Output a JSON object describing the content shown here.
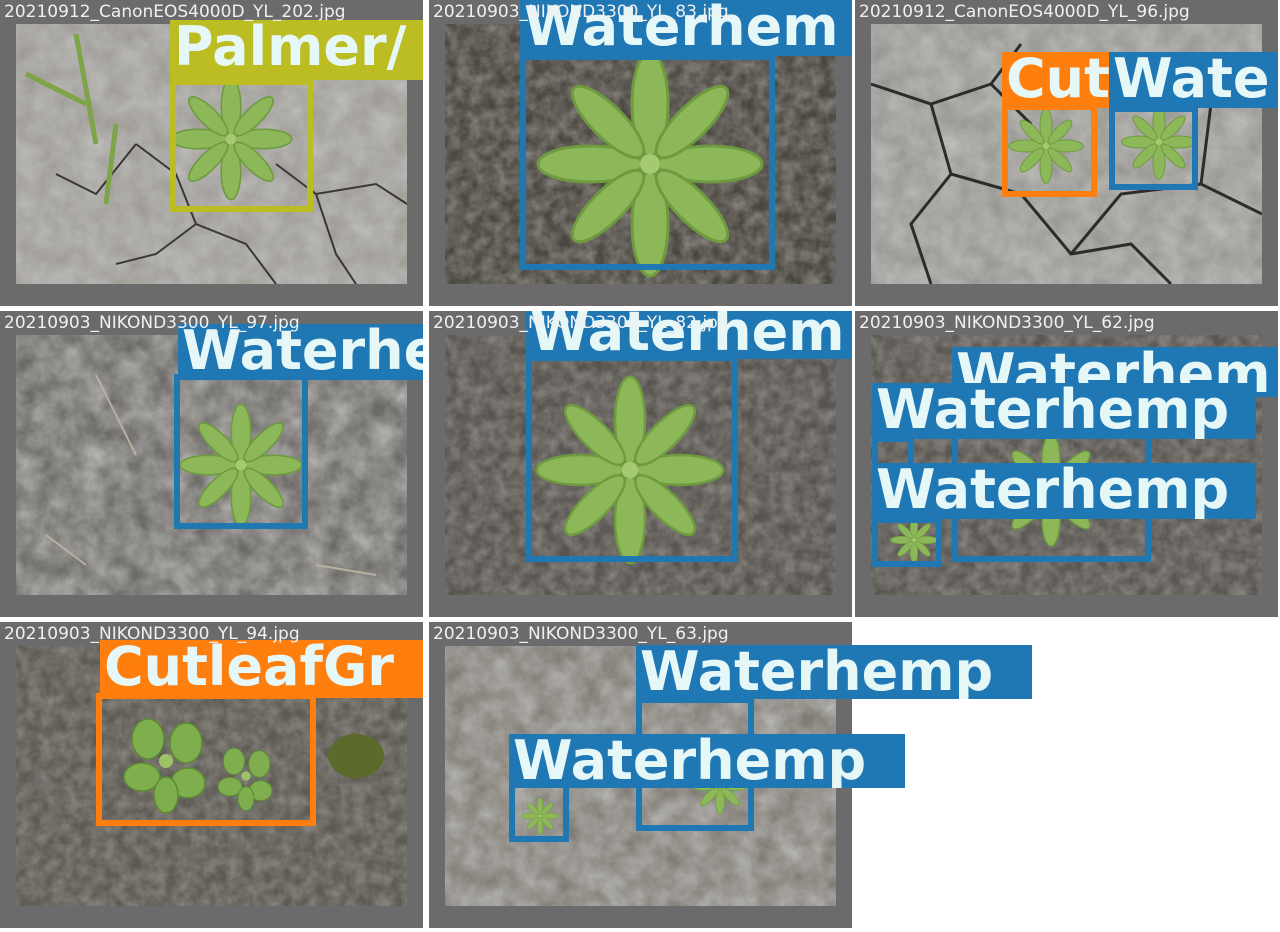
{
  "colors": {
    "waterhemp": "#1f77b4",
    "palmer": "#bcbd22",
    "cutleaf": "#ff7f0e",
    "label_text": "#e6f7f7",
    "tile_bg": "#6b6b6b"
  },
  "tiles": [
    {
      "filename": "20210912_CanonEOS4000D_YL_202.jpg",
      "labels": [
        "Palmer/"
      ]
    },
    {
      "filename": "20210903_NIKOND3300_YL_83.jpg",
      "labels": [
        "Waterhem"
      ]
    },
    {
      "filename": "20210912_CanonEOS4000D_YL_96.jpg",
      "labels": [
        "Cut",
        "Wate"
      ]
    },
    {
      "filename": "20210903_NIKOND3300_YL_97.jpg",
      "labels": [
        "Waterhe"
      ]
    },
    {
      "filename": "20210903_NIKOND3300_YL_82.jpg",
      "labels": [
        "Waterhem"
      ]
    },
    {
      "filename": "20210903_NIKOND3300_YL_62.jpg",
      "labels": [
        "Waterhem",
        "Waterhemp",
        "Waterhemp"
      ]
    },
    {
      "filename": "20210903_NIKOND3300_YL_94.jpg",
      "labels": [
        "CutleafGr"
      ]
    },
    {
      "filename": "20210903_NIKOND3300_YL_63.jpg",
      "labels": [
        "Waterhemp",
        "Waterhemp"
      ]
    }
  ]
}
